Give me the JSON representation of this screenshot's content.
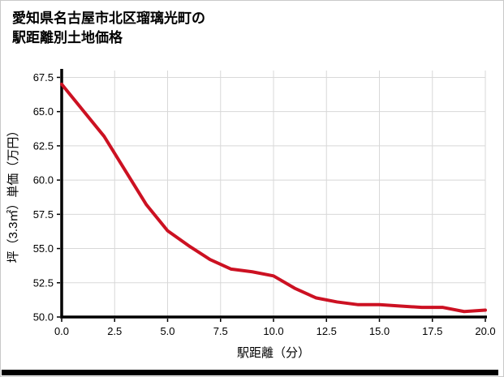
{
  "page": {
    "title_line1": "愛知県名古屋市北区瑠璃光町の",
    "title_line2": "駅距離別土地価格"
  },
  "chart_data": {
    "type": "line",
    "title": "愛知県名古屋市北区瑠璃光町の駅距離別土地価格",
    "xlabel": "駅距離（分）",
    "ylabel": "坪（3.3㎡）単価（万円）",
    "x": [
      0,
      1,
      2,
      3,
      4,
      5,
      6,
      7,
      8,
      9,
      10,
      11,
      12,
      13,
      14,
      15,
      16,
      17,
      18,
      19,
      20
    ],
    "y": [
      67.0,
      65.1,
      63.2,
      60.7,
      58.2,
      56.3,
      55.2,
      54.2,
      53.5,
      53.3,
      53.0,
      52.1,
      51.4,
      51.1,
      50.9,
      50.9,
      50.8,
      50.7,
      50.7,
      50.4,
      50.5
    ],
    "xticks": [
      0,
      2.5,
      5,
      7.5,
      10,
      12.5,
      15,
      17.5,
      20
    ],
    "yticks": [
      50.0,
      52.5,
      55.0,
      57.5,
      60.0,
      62.5,
      65.0,
      67.5
    ],
    "xlim": [
      0,
      20
    ],
    "ylim": [
      50.0,
      67.5
    ],
    "ylim_draw": [
      50.0,
      68.0
    ],
    "grid": true,
    "legend": false,
    "line_color": "#cc1122",
    "axis_color": "#000000",
    "grid_color": "#d8d8d8",
    "tick_label_color": "#000000"
  }
}
